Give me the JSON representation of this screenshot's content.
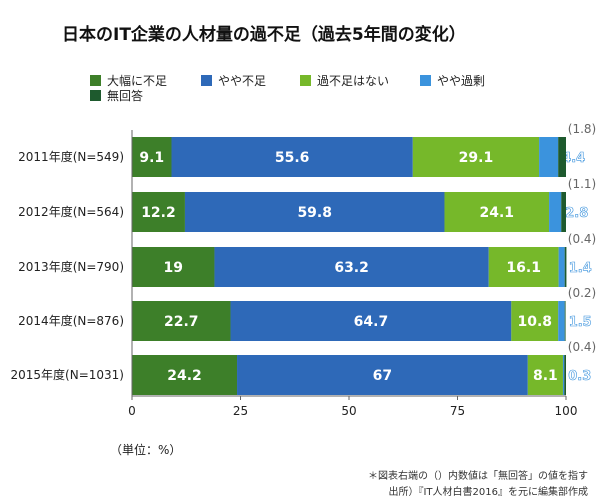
{
  "chart_data": {
    "type": "bar",
    "orientation": "horizontal",
    "stacked": true,
    "title": "日本のIT企業の人材量の過不足（過去5年間の変化）",
    "unit_label": "（単位：%）",
    "categories": [
      "2011年度(N=549)",
      "2012年度(N=564)",
      "2013年度(N=790)",
      "2014年度(N=876)",
      "2015年度(N=1031)"
    ],
    "series": [
      {
        "name": "大幅に不足",
        "color": "#3d7f29",
        "values": [
          9.1,
          12.2,
          19,
          22.7,
          24.2
        ],
        "labels": [
          "9.1",
          "12.2",
          "19",
          "22.7",
          "24.2"
        ]
      },
      {
        "name": "やや不足",
        "color": "#2e69b8",
        "values": [
          55.6,
          59.8,
          63.2,
          64.7,
          67
        ],
        "labels": [
          "55.6",
          "59.8",
          "63.2",
          "64.7",
          "67"
        ]
      },
      {
        "name": "過不足はない",
        "color": "#76b82a",
        "values": [
          29.1,
          24.1,
          16.1,
          10.8,
          8.1
        ],
        "labels": [
          "29.1",
          "24.1",
          "16.1",
          "10.8",
          "8.1"
        ]
      },
      {
        "name": "やや過剰",
        "color": "#3b93dd",
        "values": [
          4.4,
          2.8,
          1.4,
          1.5,
          0.3
        ],
        "labels": [
          "4.4",
          "2.8",
          "1.4",
          "1.5",
          "0.3"
        ]
      },
      {
        "name": "無回答",
        "color": "#1e5a2e",
        "values": [
          1.8,
          1.1,
          0.4,
          0.2,
          0.4
        ],
        "labels": [
          "(1.8)",
          "(1.1)",
          "(0.4)",
          "(0.2)",
          "(0.4)"
        ]
      }
    ],
    "xlim": [
      0,
      100
    ],
    "xticks": [
      0,
      25,
      50,
      75,
      100
    ],
    "xtick_labels": [
      "0",
      "25",
      "50",
      "75",
      "100"
    ],
    "grid": false,
    "legend_position": "top-center"
  },
  "notes": {
    "line1": "＊図表右端の（）内数値は「無回答」の値を指す",
    "line2": "出所）『IT人材白書2016』を元に編集部作成"
  }
}
